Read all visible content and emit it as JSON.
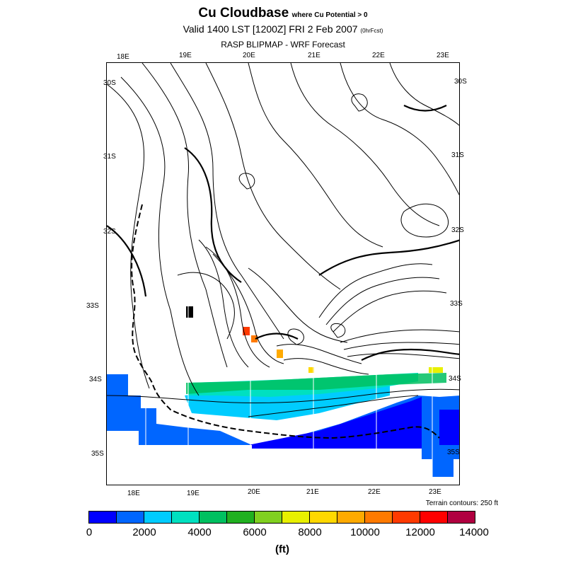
{
  "header": {
    "title": "Cu Cloudbase",
    "title_note": "where Cu Potential > 0",
    "valid_line": "Valid 1400 LST [1200Z] FRI 2 Feb 2007",
    "valid_note": "(0hrFcst)",
    "subtitle": "RASP BLIPMAP - WRF Forecast"
  },
  "map": {
    "lon_labels": [
      "18E",
      "19E",
      "20E",
      "21E",
      "22E",
      "23E"
    ],
    "lat_labels": [
      "30S",
      "31S",
      "32S",
      "33S",
      "34S",
      "35S"
    ],
    "terrain_note": "Terrain contours: 250 ft"
  },
  "colorbar": {
    "colors": [
      "#0000ff",
      "#0066ff",
      "#00ccff",
      "#00e0c0",
      "#00c060",
      "#20b020",
      "#80d020",
      "#e8f000",
      "#ffd800",
      "#ffaa00",
      "#ff7a00",
      "#ff3a00",
      "#ff0000",
      "#b00040"
    ],
    "ticks": [
      "0",
      "2000",
      "4000",
      "6000",
      "8000",
      "10000",
      "12000",
      "14000"
    ],
    "unit": "(ft)"
  },
  "colors": {
    "border": "#000000",
    "background": "#ffffff"
  }
}
